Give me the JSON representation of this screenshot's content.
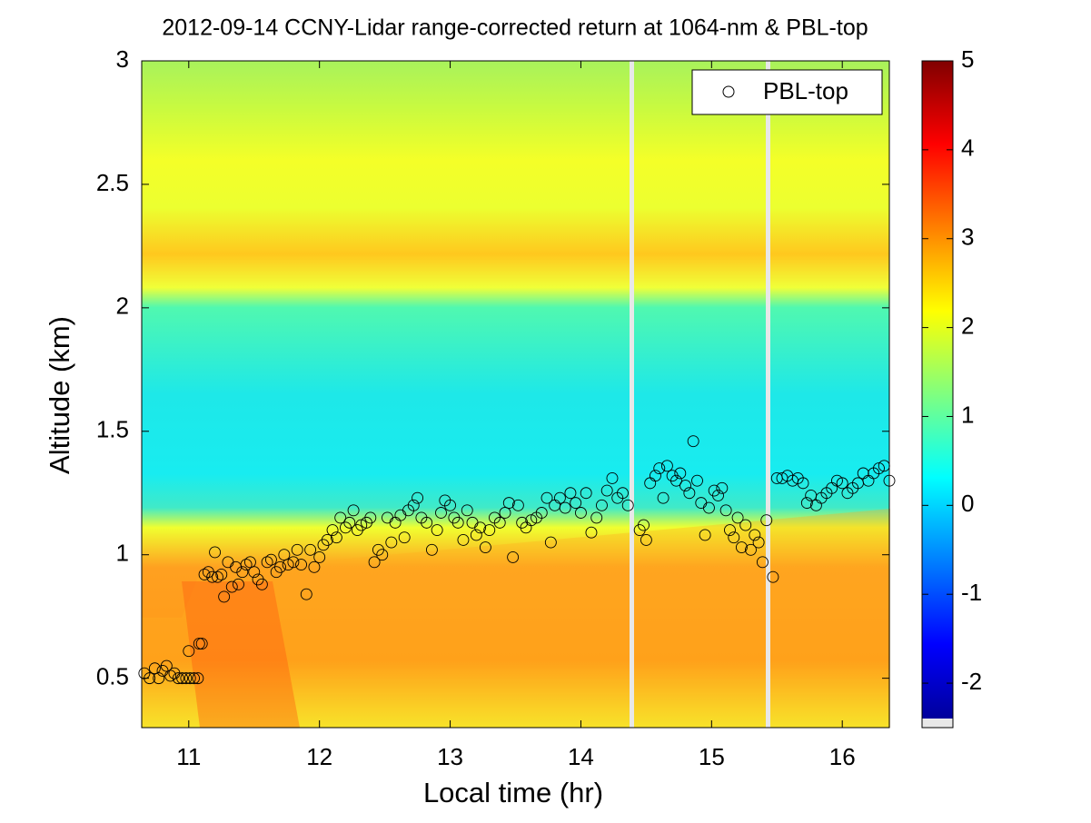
{
  "chart_data": {
    "type": "scatter",
    "title": "2012-09-14 CCNY-Lidar range-corrected return at 1064-nm & PBL-top",
    "xlabel": "Local time (hr)",
    "ylabel": "Altitude (km)",
    "x": [
      10.66,
      10.7,
      10.74,
      10.77,
      10.8,
      10.83,
      10.86,
      10.89,
      10.92,
      10.95,
      10.98,
      11.01,
      11.04,
      11.07,
      11.0,
      11.08,
      11.1,
      11.12,
      11.15,
      11.18,
      11.2,
      11.22,
      11.25,
      11.27,
      11.3,
      11.33,
      11.36,
      11.38,
      11.41,
      11.44,
      11.47,
      11.5,
      11.53,
      11.56,
      11.6,
      11.63,
      11.67,
      11.7,
      11.73,
      11.76,
      11.8,
      11.83,
      11.86,
      11.9,
      11.93,
      11.96,
      12.0,
      12.03,
      12.06,
      12.1,
      12.13,
      12.16,
      12.2,
      12.23,
      12.26,
      12.29,
      12.32,
      12.36,
      12.39,
      12.42,
      12.45,
      12.48,
      12.52,
      12.55,
      12.58,
      12.62,
      12.65,
      12.68,
      12.72,
      12.75,
      12.78,
      12.82,
      12.86,
      12.9,
      12.93,
      12.96,
      13.0,
      13.03,
      13.06,
      13.1,
      13.13,
      13.17,
      13.2,
      13.23,
      13.27,
      13.3,
      13.34,
      13.38,
      13.42,
      13.45,
      13.48,
      13.52,
      13.55,
      13.58,
      13.62,
      13.66,
      13.7,
      13.74,
      13.77,
      13.8,
      13.84,
      13.88,
      13.92,
      13.96,
      14.0,
      14.04,
      14.08,
      14.12,
      14.16,
      14.2,
      14.24,
      14.28,
      14.32,
      14.36,
      14.45,
      14.48,
      14.5,
      14.53,
      14.57,
      14.6,
      14.63,
      14.66,
      14.7,
      14.73,
      14.76,
      14.8,
      14.83,
      14.86,
      14.89,
      14.92,
      14.95,
      14.98,
      15.02,
      15.05,
      15.08,
      15.11,
      15.14,
      15.17,
      15.2,
      15.23,
      15.26,
      15.3,
      15.33,
      15.36,
      15.39,
      15.42,
      15.47,
      15.5,
      15.54,
      15.58,
      15.62,
      15.66,
      15.7,
      15.73,
      15.76,
      15.8,
      15.84,
      15.88,
      15.92,
      15.96,
      16.0,
      16.04,
      16.08,
      16.12,
      16.16,
      16.2,
      16.24,
      16.28,
      16.32,
      16.36
    ],
    "series": [
      {
        "name": "PBL-top",
        "color": "#000000",
        "values": [
          0.52,
          0.5,
          0.54,
          0.5,
          0.53,
          0.55,
          0.51,
          0.52,
          0.5,
          0.5,
          0.5,
          0.5,
          0.5,
          0.5,
          0.61,
          0.64,
          0.64,
          0.92,
          0.93,
          0.91,
          1.01,
          0.91,
          0.92,
          0.83,
          0.97,
          0.87,
          0.95,
          0.88,
          0.93,
          0.96,
          0.97,
          0.93,
          0.9,
          0.88,
          0.97,
          0.98,
          0.93,
          0.95,
          1.0,
          0.96,
          0.97,
          1.02,
          0.96,
          0.84,
          1.02,
          0.95,
          0.99,
          1.04,
          1.06,
          1.1,
          1.07,
          1.15,
          1.11,
          1.13,
          1.18,
          1.1,
          1.12,
          1.13,
          1.15,
          0.97,
          1.02,
          1.0,
          1.15,
          1.05,
          1.13,
          1.16,
          1.07,
          1.18,
          1.2,
          1.23,
          1.15,
          1.13,
          1.02,
          1.1,
          1.17,
          1.22,
          1.2,
          1.15,
          1.13,
          1.06,
          1.18,
          1.13,
          1.08,
          1.11,
          1.03,
          1.1,
          1.15,
          1.13,
          1.17,
          1.21,
          0.99,
          1.2,
          1.13,
          1.11,
          1.14,
          1.15,
          1.17,
          1.23,
          1.05,
          1.2,
          1.23,
          1.19,
          1.25,
          1.21,
          1.17,
          1.25,
          1.09,
          1.15,
          1.2,
          1.26,
          1.31,
          1.23,
          1.25,
          1.2,
          1.1,
          1.12,
          1.06,
          1.29,
          1.32,
          1.35,
          1.23,
          1.36,
          1.32,
          1.3,
          1.33,
          1.28,
          1.25,
          1.46,
          1.3,
          1.21,
          1.08,
          1.19,
          1.26,
          1.24,
          1.27,
          1.18,
          1.1,
          1.07,
          1.15,
          1.03,
          1.12,
          1.02,
          1.08,
          1.05,
          0.97,
          1.14,
          0.91,
          1.31,
          1.31,
          1.32,
          1.3,
          1.31,
          1.29,
          1.21,
          1.24,
          1.2,
          1.23,
          1.25,
          1.27,
          1.3,
          1.29,
          1.25,
          1.27,
          1.29,
          1.33,
          1.3,
          1.33,
          1.35,
          1.36,
          1.3
        ]
      }
    ],
    "xlim": [
      10.64,
      16.36
    ],
    "xticks": [
      11,
      12,
      13,
      14,
      15,
      16
    ],
    "ylim": [
      0.3,
      3
    ],
    "yticks": [
      0.5,
      1,
      1.5,
      2,
      2.5,
      3
    ],
    "clim": [
      -2.5,
      5
    ],
    "cticks": [
      -2,
      -1,
      0,
      1,
      2,
      3,
      4,
      5
    ],
    "legend": "upper right"
  }
}
